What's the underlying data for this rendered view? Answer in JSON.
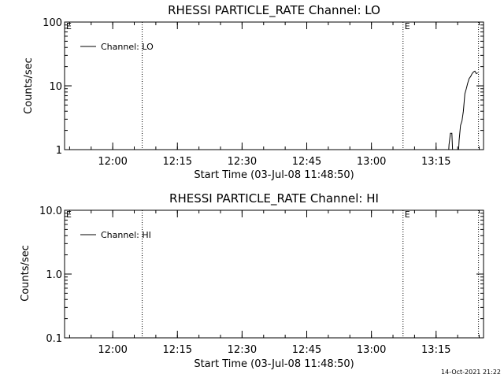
{
  "chart_data": [
    {
      "type": "line",
      "title": "RHESSI PARTICLE_RATE Channel: LO",
      "xlabel": "Start Time (03-Jul-08 11:48:50)",
      "ylabel": "Counts/sec",
      "yscale": "log",
      "xlim": [
        "11:48:50",
        "13:26:00"
      ],
      "ylim": [
        1,
        100
      ],
      "x_tick_labels": [
        "12:00",
        "12:15",
        "12:30",
        "12:45",
        "13:00",
        "13:15"
      ],
      "y_tick_labels": [
        "1",
        "10",
        "100"
      ],
      "grid": false,
      "legend": "top-left",
      "markers": [
        {
          "label": "E",
          "time": "11:48:50"
        },
        {
          "label": "",
          "time": "12:06:50"
        },
        {
          "label": "E",
          "time": "13:07:20"
        },
        {
          "label": "",
          "time": "13:24:50"
        }
      ],
      "series": [
        {
          "name": "Channel: LO",
          "x": [
            "13:17:40",
            "13:18:00",
            "13:18:20",
            "13:18:40",
            "13:19:00",
            "13:20:00",
            "13:20:20",
            "13:20:40",
            "13:21:00",
            "13:21:20",
            "13:21:40",
            "13:22:00",
            "13:22:20",
            "13:22:40",
            "13:23:00",
            "13:23:20",
            "13:23:40",
            "13:24:00",
            "13:24:20",
            "13:24:40"
          ],
          "y": [
            0.5,
            1.2,
            1.8,
            1.8,
            0.5,
            0.5,
            1.4,
            2.4,
            2.8,
            4.0,
            7.5,
            9.0,
            11.0,
            13.0,
            14.0,
            15.5,
            16.5,
            17.0,
            15.5,
            16.0
          ]
        }
      ]
    },
    {
      "type": "line",
      "title": "RHESSI PARTICLE_RATE Channel: HI",
      "xlabel": "Start Time (03-Jul-08 11:48:50)",
      "ylabel": "Counts/sec",
      "yscale": "log",
      "xlim": [
        "11:48:50",
        "13:26:00"
      ],
      "ylim": [
        0.1,
        10
      ],
      "x_tick_labels": [
        "12:00",
        "12:15",
        "12:30",
        "12:45",
        "13:00",
        "13:15"
      ],
      "y_tick_labels": [
        "0.1",
        "1.0",
        "10.0"
      ],
      "grid": false,
      "legend": "top-left",
      "markers": [
        {
          "label": "E",
          "time": "11:48:50"
        },
        {
          "label": "",
          "time": "12:06:50"
        },
        {
          "label": "E",
          "time": "13:07:20"
        },
        {
          "label": "",
          "time": "13:24:50"
        }
      ],
      "series": [
        {
          "name": "Channel: HI",
          "x": [],
          "y": []
        }
      ]
    }
  ],
  "footer": {
    "timestamp": "14-Oct-2021 21:22"
  }
}
